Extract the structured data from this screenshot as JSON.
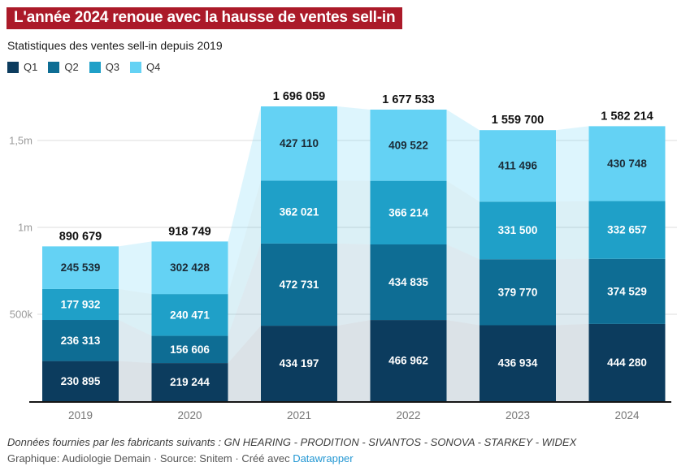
{
  "header": {
    "title": "L'année 2024 renoue avec la hausse de ventes sell-in",
    "subtitle": "Statistiques des ventes sell-in depuis 2019"
  },
  "colors": {
    "title_background": "#ab1a29",
    "title_text": "#ffffff",
    "link_blue": "#2397d3",
    "grid": "#dedede",
    "axis": "#151515",
    "tick_text": "#9a9a9a",
    "year_text": "#767676",
    "total_text": "#111111"
  },
  "chart_data": {
    "type": "bar",
    "stacked": true,
    "title": "L'année 2024 renoue avec la hausse de ventes sell-in",
    "subtitle": "Statistiques des ventes sell-in depuis 2019",
    "categories": [
      "2019",
      "2020",
      "2021",
      "2022",
      "2023",
      "2024"
    ],
    "series": [
      {
        "name": "Q1",
        "color": "#0c3c5e",
        "label_color": "#ffffff",
        "values": [
          230895,
          219244,
          434197,
          466962,
          436934,
          444280
        ]
      },
      {
        "name": "Q2",
        "color": "#0e6d94",
        "label_color": "#ffffff",
        "values": [
          236313,
          156606,
          472731,
          434835,
          379770,
          374529
        ]
      },
      {
        "name": "Q3",
        "color": "#1fa0c8",
        "label_color": "#ffffff",
        "values": [
          177932,
          240471,
          362021,
          366214,
          331500,
          332657
        ]
      },
      {
        "name": "Q4",
        "color": "#64d2f4",
        "label_color": "#1c2b36",
        "values": [
          245539,
          302428,
          427110,
          409522,
          411496,
          430748
        ]
      }
    ],
    "totals": [
      890679,
      918749,
      1696059,
      1677533,
      1559700,
      1582214
    ],
    "yticks": [
      {
        "value": 500000,
        "label": "500k"
      },
      {
        "value": 1000000,
        "label": "1m"
      },
      {
        "value": 1500000,
        "label": "1,5m"
      }
    ],
    "ylim": [
      0,
      1841000
    ],
    "grid": "horizontal",
    "legend_position": "top",
    "connector_areas": true,
    "connector_opacities": [
      0.15,
      0.14,
      0.16,
      0.22
    ]
  },
  "footer": {
    "notes": "Données fournies par les fabricants suivants : GN HEARING - PRODITION - SIVANTOS - SONOVA - STARKEY - WIDEX",
    "byline_prefix": "Graphique: Audiologie Demain · Source: Snitem · Créé avec ",
    "link_label": "Datawrapper"
  }
}
